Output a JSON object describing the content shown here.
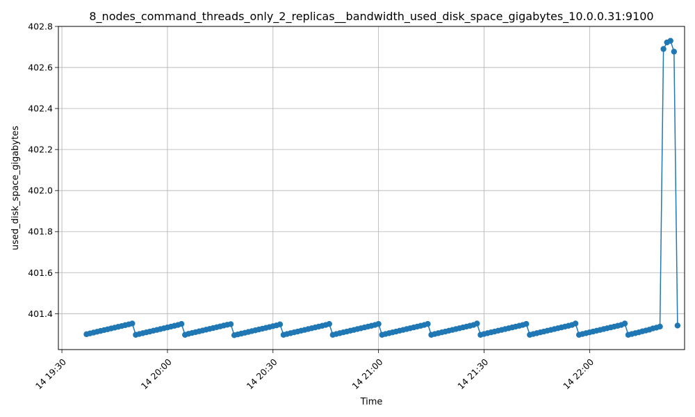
{
  "chart_data": {
    "type": "line",
    "title": "8_nodes_command_threads_only_2_replicas__bandwidth_used_disk_space_gigabytes_10.0.0.31:9100",
    "xlabel": "Time",
    "ylabel": "used_disk_space_gigabytes",
    "xlim": [
      "2024-01-14T19:29:00",
      "2024-01-14T22:27:00"
    ],
    "ylim": [
      401.225,
      402.8
    ],
    "x_ticks": [
      {
        "t": "2024-01-14T19:30:00",
        "label": "14 19:30"
      },
      {
        "t": "2024-01-14T20:00:00",
        "label": "14 20:00"
      },
      {
        "t": "2024-01-14T20:30:00",
        "label": "14 20:30"
      },
      {
        "t": "2024-01-14T21:00:00",
        "label": "14 21:00"
      },
      {
        "t": "2024-01-14T21:30:00",
        "label": "14 21:30"
      },
      {
        "t": "2024-01-14T22:00:00",
        "label": "14 22:00"
      }
    ],
    "y_ticks": [
      401.4,
      401.6,
      401.8,
      402.0,
      402.2,
      402.4,
      402.6,
      402.8
    ],
    "y_tick_labels": [
      "401.4",
      "401.6",
      "401.8",
      "402.0",
      "402.2",
      "402.4",
      "402.6",
      "402.8"
    ],
    "grid": true,
    "series": [
      {
        "color": "#1f77b4",
        "points": [
          [
            "19:37:00",
            401.3
          ],
          [
            "19:38:00",
            401.304
          ],
          [
            "19:39:00",
            401.308
          ],
          [
            "19:40:00",
            401.312
          ],
          [
            "19:41:00",
            401.316
          ],
          [
            "19:42:00",
            401.32
          ],
          [
            "19:43:00",
            401.324
          ],
          [
            "19:44:00",
            401.328
          ],
          [
            "19:45:00",
            401.332
          ],
          [
            "19:46:00",
            401.336
          ],
          [
            "19:47:00",
            401.34
          ],
          [
            "19:48:00",
            401.344
          ],
          [
            "19:49:00",
            401.348
          ],
          [
            "19:50:00",
            401.352
          ],
          [
            "19:51:00",
            401.297
          ],
          [
            "19:52:00",
            401.301
          ],
          [
            "19:53:00",
            401.305
          ],
          [
            "19:54:00",
            401.309
          ],
          [
            "19:55:00",
            401.313
          ],
          [
            "19:56:00",
            401.317
          ],
          [
            "19:57:00",
            401.321
          ],
          [
            "19:58:00",
            401.325
          ],
          [
            "19:59:00",
            401.329
          ],
          [
            "20:00:00",
            401.333
          ],
          [
            "20:01:00",
            401.337
          ],
          [
            "20:02:00",
            401.341
          ],
          [
            "20:03:00",
            401.345
          ],
          [
            "20:04:00",
            401.35
          ],
          [
            "20:05:00",
            401.297
          ],
          [
            "20:06:00",
            401.302
          ],
          [
            "20:07:00",
            401.306
          ],
          [
            "20:08:00",
            401.31
          ],
          [
            "20:09:00",
            401.314
          ],
          [
            "20:10:00",
            401.318
          ],
          [
            "20:11:00",
            401.322
          ],
          [
            "20:12:00",
            401.326
          ],
          [
            "20:13:00",
            401.33
          ],
          [
            "20:14:00",
            401.334
          ],
          [
            "20:15:00",
            401.338
          ],
          [
            "20:16:00",
            401.342
          ],
          [
            "20:17:00",
            401.346
          ],
          [
            "20:18:00",
            401.349
          ],
          [
            "20:19:00",
            401.295
          ],
          [
            "20:20:00",
            401.299
          ],
          [
            "20:21:00",
            401.303
          ],
          [
            "20:22:00",
            401.307
          ],
          [
            "20:23:00",
            401.311
          ],
          [
            "20:24:00",
            401.315
          ],
          [
            "20:25:00",
            401.319
          ],
          [
            "20:26:00",
            401.323
          ],
          [
            "20:27:00",
            401.327
          ],
          [
            "20:28:00",
            401.331
          ],
          [
            "20:29:00",
            401.335
          ],
          [
            "20:30:00",
            401.339
          ],
          [
            "20:31:00",
            401.343
          ],
          [
            "20:32:00",
            401.348
          ],
          [
            "20:33:00",
            401.297
          ],
          [
            "20:34:00",
            401.301
          ],
          [
            "20:35:00",
            401.305
          ],
          [
            "20:36:00",
            401.309
          ],
          [
            "20:37:00",
            401.313
          ],
          [
            "20:38:00",
            401.317
          ],
          [
            "20:39:00",
            401.321
          ],
          [
            "20:40:00",
            401.325
          ],
          [
            "20:41:00",
            401.329
          ],
          [
            "20:42:00",
            401.333
          ],
          [
            "20:43:00",
            401.337
          ],
          [
            "20:44:00",
            401.341
          ],
          [
            "20:45:00",
            401.345
          ],
          [
            "20:46:00",
            401.35
          ],
          [
            "20:47:00",
            401.297
          ],
          [
            "20:48:00",
            401.301
          ],
          [
            "20:49:00",
            401.305
          ],
          [
            "20:50:00",
            401.309
          ],
          [
            "20:51:00",
            401.313
          ],
          [
            "20:52:00",
            401.317
          ],
          [
            "20:53:00",
            401.321
          ],
          [
            "20:54:00",
            401.325
          ],
          [
            "20:55:00",
            401.329
          ],
          [
            "20:56:00",
            401.333
          ],
          [
            "20:57:00",
            401.337
          ],
          [
            "20:58:00",
            401.341
          ],
          [
            "20:59:00",
            401.345
          ],
          [
            "21:00:00",
            401.35
          ],
          [
            "21:01:00",
            401.297
          ],
          [
            "21:02:00",
            401.301
          ],
          [
            "21:03:00",
            401.305
          ],
          [
            "21:04:00",
            401.309
          ],
          [
            "21:05:00",
            401.313
          ],
          [
            "21:06:00",
            401.317
          ],
          [
            "21:07:00",
            401.321
          ],
          [
            "21:08:00",
            401.325
          ],
          [
            "21:09:00",
            401.329
          ],
          [
            "21:10:00",
            401.333
          ],
          [
            "21:11:00",
            401.337
          ],
          [
            "21:12:00",
            401.341
          ],
          [
            "21:13:00",
            401.345
          ],
          [
            "21:14:00",
            401.35
          ],
          [
            "21:15:00",
            401.297
          ],
          [
            "21:16:00",
            401.301
          ],
          [
            "21:17:00",
            401.305
          ],
          [
            "21:18:00",
            401.309
          ],
          [
            "21:19:00",
            401.313
          ],
          [
            "21:20:00",
            401.317
          ],
          [
            "21:21:00",
            401.321
          ],
          [
            "21:22:00",
            401.325
          ],
          [
            "21:23:00",
            401.329
          ],
          [
            "21:24:00",
            401.333
          ],
          [
            "21:25:00",
            401.337
          ],
          [
            "21:26:00",
            401.341
          ],
          [
            "21:27:00",
            401.345
          ],
          [
            "21:28:00",
            401.352
          ],
          [
            "21:29:00",
            401.297
          ],
          [
            "21:30:00",
            401.301
          ],
          [
            "21:31:00",
            401.305
          ],
          [
            "21:32:00",
            401.309
          ],
          [
            "21:33:00",
            401.313
          ],
          [
            "21:34:00",
            401.317
          ],
          [
            "21:35:00",
            401.321
          ],
          [
            "21:36:00",
            401.325
          ],
          [
            "21:37:00",
            401.329
          ],
          [
            "21:38:00",
            401.333
          ],
          [
            "21:39:00",
            401.337
          ],
          [
            "21:40:00",
            401.341
          ],
          [
            "21:41:00",
            401.345
          ],
          [
            "21:42:00",
            401.35
          ],
          [
            "21:43:00",
            401.297
          ],
          [
            "21:44:00",
            401.301
          ],
          [
            "21:45:00",
            401.305
          ],
          [
            "21:46:00",
            401.309
          ],
          [
            "21:47:00",
            401.313
          ],
          [
            "21:48:00",
            401.317
          ],
          [
            "21:49:00",
            401.321
          ],
          [
            "21:50:00",
            401.325
          ],
          [
            "21:51:00",
            401.329
          ],
          [
            "21:52:00",
            401.333
          ],
          [
            "21:53:00",
            401.337
          ],
          [
            "21:54:00",
            401.341
          ],
          [
            "21:55:00",
            401.345
          ],
          [
            "21:56:00",
            401.352
          ],
          [
            "21:57:00",
            401.297
          ],
          [
            "21:58:00",
            401.301
          ],
          [
            "21:59:00",
            401.305
          ],
          [
            "22:00:00",
            401.309
          ],
          [
            "22:01:00",
            401.313
          ],
          [
            "22:02:00",
            401.317
          ],
          [
            "22:03:00",
            401.321
          ],
          [
            "22:04:00",
            401.325
          ],
          [
            "22:05:00",
            401.329
          ],
          [
            "22:06:00",
            401.333
          ],
          [
            "22:07:00",
            401.337
          ],
          [
            "22:08:00",
            401.341
          ],
          [
            "22:09:00",
            401.345
          ],
          [
            "22:10:00",
            401.352
          ],
          [
            "22:11:00",
            401.297
          ],
          [
            "22:12:00",
            401.301
          ],
          [
            "22:13:00",
            401.305
          ],
          [
            "22:14:00",
            401.309
          ],
          [
            "22:15:00",
            401.314
          ],
          [
            "22:16:00",
            401.318
          ],
          [
            "22:17:00",
            401.322
          ],
          [
            "22:18:00",
            401.328
          ],
          [
            "22:19:00",
            401.332
          ],
          [
            "22:20:00",
            401.337
          ],
          [
            "22:21:00",
            402.69
          ],
          [
            "22:22:00",
            402.722
          ],
          [
            "22:23:00",
            402.73
          ],
          [
            "22:24:00",
            402.677
          ],
          [
            "22:25:00",
            401.342
          ]
        ]
      }
    ]
  }
}
